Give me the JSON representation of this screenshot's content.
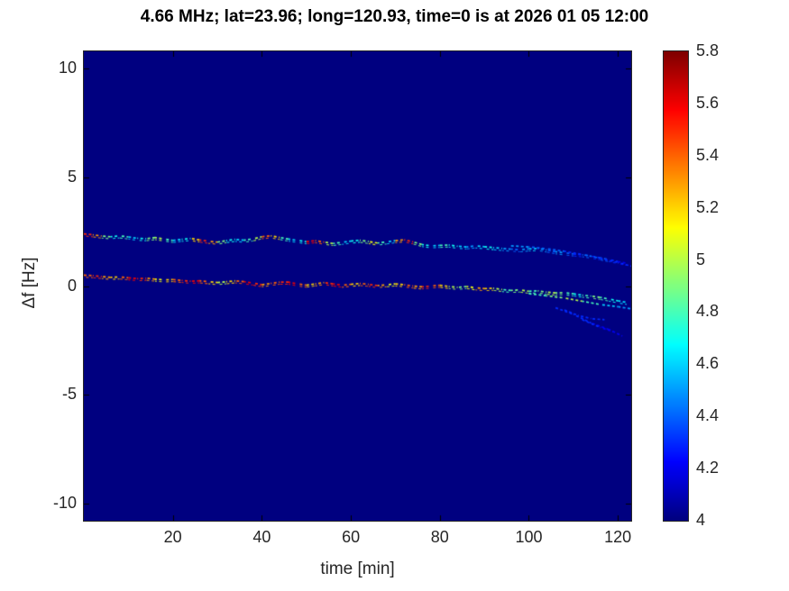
{
  "title": "4.66 MHz;  lat=23.96; long=120.93, time=0 is at 2026 01 05 12:00",
  "colors": {
    "plot_background": "#000080",
    "axis_text": "#262626"
  },
  "chart_data": {
    "type": "heatmap",
    "title": "4.66 MHz;  lat=23.96; long=120.93, time=0 is at 2026 01 05 12:00",
    "xlabel": "time [min]",
    "ylabel": "Δf [Hz]",
    "xlim": [
      0,
      123
    ],
    "ylim": [
      -10.8,
      10.8
    ],
    "xticks": [
      20,
      40,
      60,
      80,
      100,
      120
    ],
    "xtick_labels": [
      "20",
      "40",
      "60",
      "80",
      "100",
      "120"
    ],
    "yticks": [
      10,
      5,
      0,
      -5,
      -10
    ],
    "ytick_labels": [
      "10",
      "5",
      "0",
      "-5",
      "-10"
    ],
    "grid": false,
    "colormap": "jet",
    "colorbar": {
      "min": 4,
      "max": 5.8,
      "ticks": [
        4,
        4.2,
        4.4,
        4.6,
        4.8,
        5,
        5.2,
        5.4,
        5.6,
        5.8
      ],
      "tick_labels": [
        "4",
        "4.2",
        "4.4",
        "4.6",
        "4.8",
        "5",
        "5.2",
        "5.4",
        "5.6",
        "5.8"
      ],
      "position": "right"
    },
    "background_value": 4,
    "series": [
      {
        "name": "upper-doppler-trace",
        "double": true,
        "t": [
          0,
          2,
          4,
          6,
          8,
          10,
          12,
          14,
          16,
          18,
          20,
          22,
          24,
          26,
          28,
          30,
          32,
          34,
          36,
          38,
          40,
          42,
          44,
          46,
          48,
          50,
          52,
          54,
          56,
          58,
          60,
          62,
          64,
          66,
          68,
          70,
          72,
          74,
          76,
          78,
          80,
          82,
          84,
          86,
          88,
          90,
          92,
          94,
          96,
          98,
          100,
          102,
          104,
          106,
          108,
          110,
          112,
          114,
          116,
          118,
          120,
          122
        ],
        "y": [
          2.4,
          2.36,
          2.3,
          2.27,
          2.31,
          2.26,
          2.2,
          2.18,
          2.23,
          2.17,
          2.1,
          2.15,
          2.19,
          2.12,
          2.06,
          2.02,
          2.09,
          2.15,
          2.11,
          2.17,
          2.27,
          2.31,
          2.24,
          2.16,
          2.1,
          2.04,
          2.09,
          2.02,
          1.96,
          2.01,
          2.07,
          2.11,
          2.05,
          1.98,
          2.03,
          2.09,
          2.13,
          2.03,
          1.91,
          1.85,
          1.87,
          1.89,
          1.83,
          1.8,
          1.85,
          1.81,
          1.77,
          1.73,
          1.7,
          1.67,
          1.71,
          1.73,
          1.66,
          1.58,
          1.53,
          1.48,
          1.44,
          1.38,
          1.3,
          1.22,
          1.13,
          1.05
        ],
        "c": [
          5.5,
          5.3,
          4.9,
          4.7,
          4.8,
          4.6,
          4.7,
          4.9,
          5.0,
          4.8,
          4.6,
          4.7,
          5.2,
          5.5,
          5.3,
          4.9,
          4.7,
          4.6,
          4.8,
          5.0,
          5.4,
          5.2,
          4.8,
          4.6,
          4.7,
          5.6,
          5.4,
          5.0,
          4.8,
          4.6,
          4.7,
          4.9,
          5.1,
          4.8,
          4.6,
          5.3,
          5.5,
          4.9,
          4.7,
          4.6,
          4.8,
          4.7,
          4.6,
          4.5,
          4.6,
          4.7,
          4.6,
          4.5,
          4.4,
          4.5,
          4.6,
          4.5,
          4.4,
          4.5,
          4.4,
          4.3,
          4.4,
          4.3,
          4.4,
          4.3,
          4.2,
          4.3
        ]
      },
      {
        "name": "lower-doppler-trace",
        "double": true,
        "t": [
          0,
          2,
          4,
          6,
          8,
          10,
          12,
          14,
          16,
          18,
          20,
          22,
          24,
          26,
          28,
          30,
          32,
          34,
          36,
          38,
          40,
          42,
          44,
          46,
          48,
          50,
          52,
          54,
          56,
          58,
          60,
          62,
          64,
          66,
          68,
          70,
          72,
          74,
          76,
          78,
          80,
          82,
          84,
          86,
          88,
          90,
          92,
          94,
          96,
          98,
          100,
          102,
          104,
          106,
          108,
          110,
          112,
          114,
          116,
          118,
          120,
          122
        ],
        "y": [
          0.5,
          0.48,
          0.44,
          0.4,
          0.42,
          0.38,
          0.34,
          0.36,
          0.32,
          0.28,
          0.3,
          0.26,
          0.22,
          0.24,
          0.2,
          0.16,
          0.2,
          0.24,
          0.2,
          0.14,
          0.06,
          0.12,
          0.18,
          0.18,
          0.1,
          0.04,
          0.1,
          0.16,
          0.1,
          0.04,
          0.08,
          0.12,
          0.08,
          0.02,
          0.06,
          0.1,
          0.06,
          0.0,
          -0.04,
          0.0,
          0.04,
          -0.02,
          -0.06,
          -0.02,
          -0.08,
          -0.12,
          -0.1,
          -0.16,
          -0.2,
          -0.18,
          -0.24,
          -0.22,
          -0.28,
          -0.32,
          -0.3,
          -0.36,
          -0.42,
          -0.46,
          -0.52,
          -0.6,
          -0.68,
          -0.75
        ],
        "c": [
          5.4,
          5.5,
          5.3,
          5.2,
          5.4,
          5.6,
          5.5,
          5.3,
          5.1,
          5.2,
          5.4,
          5.5,
          5.6,
          5.4,
          5.2,
          5.0,
          5.2,
          5.4,
          5.6,
          5.5,
          5.3,
          5.4,
          5.5,
          5.6,
          5.4,
          5.2,
          5.3,
          5.5,
          5.6,
          5.4,
          5.2,
          5.4,
          5.5,
          5.3,
          5.1,
          5.2,
          5.4,
          5.3,
          5.5,
          5.4,
          5.2,
          5.0,
          4.9,
          5.1,
          5.3,
          5.2,
          5.0,
          4.8,
          4.9,
          5.0,
          4.8,
          4.9,
          5.0,
          4.9,
          4.8,
          4.7,
          4.8,
          4.9,
          4.8,
          4.7,
          4.6,
          4.7
        ]
      },
      {
        "name": "upper-trace-branch",
        "double": false,
        "t": [
          96,
          100,
          104,
          108,
          112,
          116,
          120,
          123
        ],
        "y": [
          1.85,
          1.8,
          1.72,
          1.6,
          1.45,
          1.28,
          1.08,
          0.92
        ],
        "c": [
          4.5,
          4.4,
          4.4,
          4.3,
          4.4,
          4.3,
          4.3,
          4.2
        ]
      },
      {
        "name": "lower-trace-branch",
        "double": false,
        "t": [
          100,
          104,
          108,
          112,
          116,
          120,
          123
        ],
        "y": [
          -0.35,
          -0.45,
          -0.55,
          -0.7,
          -0.85,
          -0.95,
          -1.05
        ],
        "c": [
          4.8,
          4.9,
          5.0,
          4.8,
          4.6,
          4.5,
          4.4
        ]
      },
      {
        "name": "faint-streak-1",
        "double": false,
        "t": [
          106,
          110,
          114,
          118,
          121
        ],
        "y": [
          -1.0,
          -1.3,
          -1.7,
          -2.0,
          -2.3
        ],
        "c": [
          4.3,
          4.3,
          4.2,
          4.2,
          4.2
        ]
      },
      {
        "name": "faint-streak-2",
        "double": false,
        "t": [
          108,
          111,
          114,
          117
        ],
        "y": [
          -1.1,
          -1.35,
          -1.5,
          -1.55
        ],
        "c": [
          4.3,
          4.3,
          4.3,
          4.2
        ]
      },
      {
        "name": "faint-streak-3",
        "double": false,
        "t": [
          112,
          116,
          119
        ],
        "y": [
          -1.55,
          -1.9,
          -2.1
        ],
        "c": [
          4.3,
          4.2,
          4.2
        ]
      }
    ]
  }
}
